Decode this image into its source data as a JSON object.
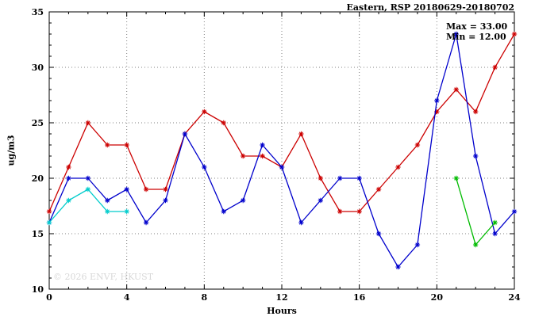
{
  "title": "Eastern, RSP 20180629-20180702",
  "annotations": {
    "max": "Max = 33.00",
    "min": "Min = 12.00"
  },
  "watermark": "© 2026 ENVF, HKUST",
  "chart_data": {
    "type": "line",
    "title": "Eastern, RSP 20180629-20180702",
    "xlabel": "Hours",
    "ylabel": "ug/m3",
    "xlim": [
      0,
      24
    ],
    "ylim": [
      10,
      35
    ],
    "xticks": [
      0,
      4,
      8,
      12,
      16,
      20,
      24
    ],
    "yticks": [
      10,
      15,
      20,
      25,
      30,
      35
    ],
    "grid": true,
    "legend_position": "none",
    "marker": "asterisk",
    "series": [
      {
        "name": "red-series",
        "color": "#cc0000",
        "x": [
          0,
          1,
          2,
          3,
          4,
          5,
          6,
          7,
          8,
          9,
          10,
          11,
          12,
          13,
          14,
          15,
          16,
          17,
          18,
          19,
          20,
          21,
          22,
          23,
          24
        ],
        "values": [
          17,
          21,
          25,
          23,
          23,
          19,
          19,
          24,
          26,
          25,
          22,
          22,
          21,
          24,
          20,
          17,
          17,
          19,
          21,
          23,
          26,
          28,
          26,
          30,
          33
        ]
      },
      {
        "name": "blue-series",
        "color": "#0000cc",
        "x": [
          0,
          1,
          2,
          3,
          4,
          5,
          6,
          7,
          8,
          9,
          10,
          11,
          12,
          13,
          14,
          15,
          16,
          17,
          18,
          19,
          20,
          21,
          22,
          23,
          24
        ],
        "values": [
          16,
          20,
          20,
          18,
          19,
          16,
          18,
          24,
          21,
          17,
          18,
          23,
          21,
          16,
          18,
          20,
          20,
          15,
          12,
          14,
          27,
          33,
          22,
          15,
          17
        ]
      },
      {
        "name": "cyan-series",
        "color": "#00cccc",
        "x": [
          0,
          1,
          2,
          3,
          4
        ],
        "values": [
          16,
          18,
          19,
          17,
          17
        ]
      },
      {
        "name": "green-series",
        "color": "#00bb00",
        "x": [
          21,
          22,
          23
        ],
        "values": [
          20,
          14,
          16
        ]
      }
    ]
  }
}
